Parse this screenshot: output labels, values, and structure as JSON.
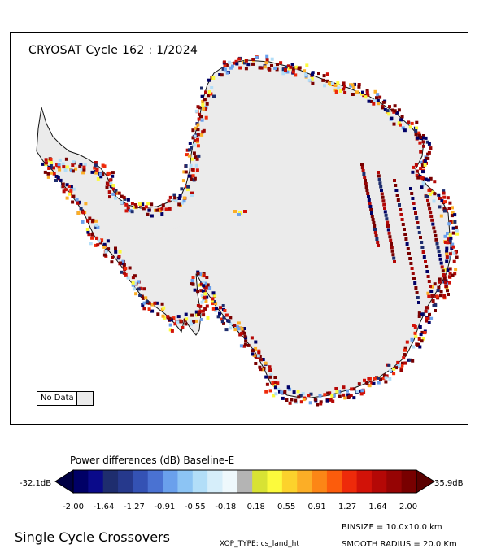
{
  "map": {
    "title": "CRYOSAT Cycle 162 : 1/2024",
    "nodata_label": "No Data",
    "nodata_color": "#ebebeb",
    "land_color": "#ebebeb"
  },
  "colorbar": {
    "title": "Power differences (dB) Baseline-E",
    "min_label": "-32.1dB",
    "max_label": "35.9dB",
    "ticks": [
      "-2.00",
      "-1.64",
      "-1.27",
      "-0.91",
      "-0.55",
      "-0.18",
      "0.18",
      "0.55",
      "0.91",
      "1.27",
      "1.64",
      "2.00"
    ],
    "colors": [
      "#000066",
      "#0a0a8a",
      "#1e2d6e",
      "#26398c",
      "#3452b4",
      "#4a72d2",
      "#6aa0ec",
      "#8cc4f4",
      "#b2def8",
      "#d6eefa",
      "#eef8fc",
      "#b4b4b4",
      "#d8e234",
      "#fcfa3c",
      "#fcd22c",
      "#fcae26",
      "#fc8616",
      "#fc5c0c",
      "#ee2a0a",
      "#d21208",
      "#b40806",
      "#960404",
      "#780000"
    ],
    "low_color": "#000044",
    "high_color": "#5a0000"
  },
  "footer": {
    "title": "Single Cycle Crossovers",
    "xop_type": "XOP_TYPE: cs_land_ht",
    "binsize": "BINSIZE = 10.0x10.0 km",
    "smooth_radius": "SMOOTH RADIUS =  20.0 Km"
  }
}
